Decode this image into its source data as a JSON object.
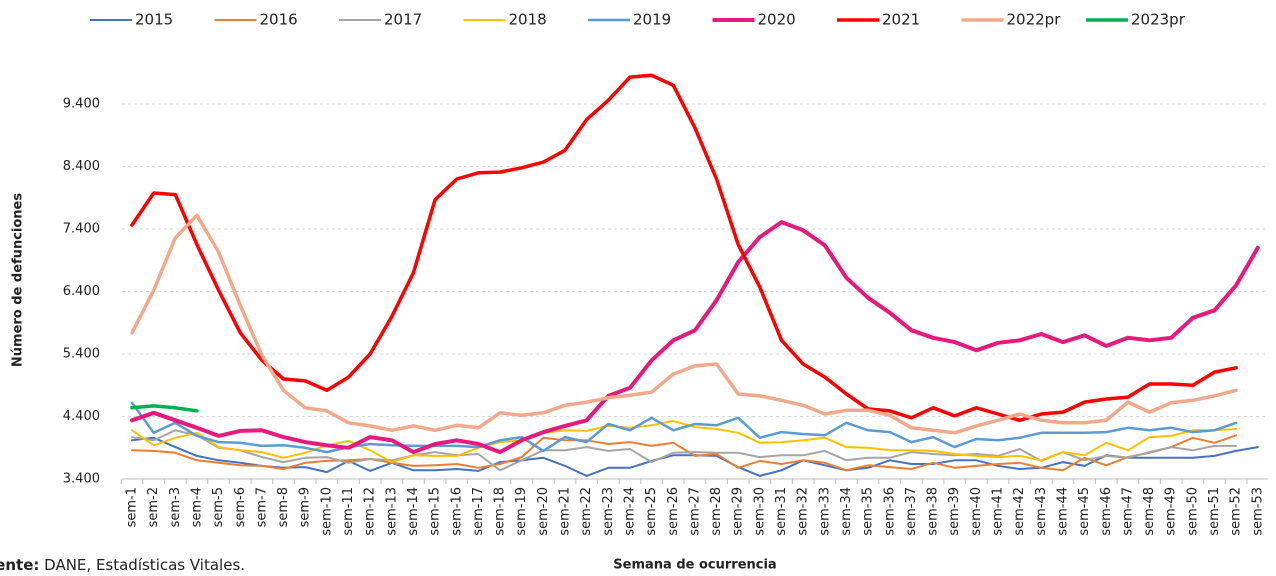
{
  "chart_data": {
    "type": "line",
    "y_label": "Número de defunciones",
    "x_label": "Semana de ocurrencia",
    "source_label": "Fuente:",
    "source": "DANE, Estadísticas Vitales.",
    "categories": [
      "sem-1",
      "sem-2",
      "sem-3",
      "sem-4",
      "sem-5",
      "sem-6",
      "sem-7",
      "sem-8",
      "sem-9",
      "sem-10",
      "sem-11",
      "sem-12",
      "sem-13",
      "sem-14",
      "sem-15",
      "sem-16",
      "sem-17",
      "sem-18",
      "sem-19",
      "sem-20",
      "sem-21",
      "sem-22",
      "sem-23",
      "sem-24",
      "sem-25",
      "sem-26",
      "sem-27",
      "sem-28",
      "sem-29",
      "sem-30",
      "sem-31",
      "sem-32",
      "sem-33",
      "sem-34",
      "sem-35",
      "sem-36",
      "sem-37",
      "sem-38",
      "sem-39",
      "sem-40",
      "sem-41",
      "sem-42",
      "sem-43",
      "sem-44",
      "sem-45",
      "sem-46",
      "sem-47",
      "sem-48",
      "sem-49",
      "sem-50",
      "sem-51",
      "sem-52",
      "sem-53"
    ],
    "ylim": [
      3400,
      10000
    ],
    "yticks": [
      {
        "value": 3400,
        "label": "3.400"
      },
      {
        "value": 4400,
        "label": "4.400"
      },
      {
        "value": 5400,
        "label": "5.400"
      },
      {
        "value": 6400,
        "label": "6.400"
      },
      {
        "value": 7400,
        "label": "7.400"
      },
      {
        "value": 8400,
        "label": "8.400"
      },
      {
        "value": 9400,
        "label": "9.400"
      }
    ],
    "grid": true,
    "legend": "top",
    "series": [
      {
        "name": "2015",
        "color": "#4472c4",
        "width": 2,
        "values": [
          4020,
          4060,
          3910,
          3770,
          3700,
          3660,
          3610,
          3580,
          3590,
          3510,
          3690,
          3530,
          3660,
          3540,
          3540,
          3560,
          3530,
          3670,
          3700,
          3740,
          3610,
          3450,
          3580,
          3580,
          3690,
          3780,
          3780,
          3770,
          3590,
          3450,
          3540,
          3700,
          3620,
          3540,
          3580,
          3700,
          3640,
          3640,
          3700,
          3700,
          3610,
          3560,
          3580,
          3670,
          3610,
          3780,
          3740,
          3740,
          3740,
          3740,
          3770,
          3850,
          3910
        ]
      },
      {
        "name": "2016",
        "color": "#ed7d31",
        "width": 2,
        "values": [
          3860,
          3850,
          3820,
          3700,
          3660,
          3620,
          3610,
          3560,
          3660,
          3690,
          3700,
          3720,
          3660,
          3610,
          3620,
          3640,
          3580,
          3640,
          3750,
          4060,
          4020,
          4020,
          3960,
          3990,
          3930,
          3980,
          3770,
          3800,
          3580,
          3690,
          3640,
          3700,
          3660,
          3540,
          3620,
          3590,
          3560,
          3660,
          3580,
          3610,
          3640,
          3660,
          3580,
          3540,
          3740,
          3620,
          3750,
          3820,
          3910,
          4060,
          3980,
          4100,
          null
        ]
      },
      {
        "name": "2017",
        "color": "#a5a5a5",
        "width": 2,
        "values": [
          4070,
          4020,
          4180,
          4100,
          3900,
          3860,
          3750,
          3670,
          3740,
          3750,
          3660,
          3720,
          3700,
          3780,
          3830,
          3780,
          3800,
          3540,
          3700,
          3860,
          3860,
          3910,
          3850,
          3880,
          3670,
          3820,
          3830,
          3820,
          3820,
          3750,
          3780,
          3780,
          3850,
          3700,
          3740,
          3740,
          3830,
          3800,
          3780,
          3800,
          3770,
          3880,
          3690,
          3830,
          3700,
          3770,
          3740,
          3830,
          3910,
          3860,
          3930,
          3930,
          null
        ]
      },
      {
        "name": "2018",
        "color": "#ffc000",
        "width": 2,
        "values": [
          4180,
          3940,
          4060,
          4140,
          3910,
          3860,
          3830,
          3740,
          3820,
          3940,
          4010,
          3860,
          3670,
          3780,
          3770,
          3770,
          3900,
          3990,
          4020,
          4140,
          4180,
          4170,
          4250,
          4220,
          4260,
          4330,
          4230,
          4200,
          4140,
          3980,
          3990,
          4020,
          4060,
          3910,
          3900,
          3860,
          3860,
          3850,
          3800,
          3770,
          3750,
          3770,
          3700,
          3830,
          3780,
          3980,
          3860,
          4070,
          4090,
          4180,
          4180,
          4200,
          null
        ]
      },
      {
        "name": "2019",
        "color": "#5b9bd5",
        "width": 2.5,
        "values": [
          4620,
          4140,
          4300,
          4090,
          3990,
          3980,
          3930,
          3940,
          3900,
          3830,
          3910,
          3960,
          3940,
          3930,
          3930,
          3930,
          3910,
          4020,
          4070,
          3850,
          4070,
          3990,
          4280,
          4180,
          4380,
          4180,
          4280,
          4260,
          4380,
          4060,
          4150,
          4120,
          4100,
          4300,
          4180,
          4150,
          3990,
          4070,
          3910,
          4040,
          4020,
          4060,
          4140,
          4140,
          4140,
          4150,
          4220,
          4180,
          4220,
          4150,
          4180,
          4300,
          null
        ]
      },
      {
        "name": "2020",
        "color": "#e8197c",
        "width": 4,
        "values": [
          4340,
          4460,
          4340,
          4220,
          4090,
          4170,
          4180,
          4070,
          3990,
          3940,
          3900,
          4070,
          4020,
          3830,
          3960,
          4020,
          3960,
          3830,
          4020,
          4150,
          4250,
          4340,
          4730,
          4860,
          5300,
          5620,
          5780,
          6260,
          6870,
          7270,
          7510,
          7380,
          7140,
          6620,
          6300,
          6060,
          5780,
          5660,
          5590,
          5460,
          5580,
          5620,
          5720,
          5590,
          5700,
          5530,
          5660,
          5620,
          5660,
          5980,
          6100,
          6500,
          7100
        ]
      },
      {
        "name": "2021",
        "color": "#ff0000",
        "width": 3.5,
        "values": [
          7464,
          7976,
          7950,
          7150,
          6420,
          5740,
          5300,
          5000,
          4970,
          4820,
          5030,
          5400,
          6000,
          6700,
          7870,
          8200,
          8300,
          8310,
          8380,
          8470,
          8660,
          9150,
          9460,
          9830,
          9860,
          9700,
          9020,
          8200,
          7150,
          6470,
          5620,
          5240,
          5030,
          4760,
          4520,
          4490,
          4380,
          4540,
          4410,
          4540,
          4440,
          4340,
          4440,
          4470,
          4630,
          4680,
          4710,
          4920,
          4920,
          4900,
          5110,
          5180,
          null
        ]
      },
      {
        "name": "2022pr",
        "color": "#f2a88a",
        "width": 3.5,
        "values": [
          5740,
          6420,
          7260,
          7620,
          7030,
          6180,
          5380,
          4820,
          4540,
          4490,
          4300,
          4250,
          4180,
          4250,
          4180,
          4260,
          4220,
          4460,
          4420,
          4460,
          4580,
          4630,
          4700,
          4740,
          4790,
          5080,
          5210,
          5240,
          4760,
          4730,
          4660,
          4580,
          4440,
          4500,
          4500,
          4420,
          4220,
          4180,
          4140,
          4250,
          4340,
          4440,
          4340,
          4300,
          4300,
          4340,
          4630,
          4470,
          4620,
          4660,
          4730,
          4820,
          null
        ]
      },
      {
        "name": "2023pr",
        "color": "#00b050",
        "width": 3.5,
        "values": [
          4540,
          4570,
          4540,
          4490,
          null,
          null,
          null,
          null,
          null,
          null,
          null,
          null,
          null,
          null,
          null,
          null,
          null,
          null,
          null,
          null,
          null,
          null,
          null,
          null,
          null,
          null,
          null,
          null,
          null,
          null,
          null,
          null,
          null,
          null,
          null,
          null,
          null,
          null,
          null,
          null,
          null,
          null,
          null,
          null,
          null,
          null,
          null,
          null,
          null,
          null,
          null,
          null,
          null
        ]
      }
    ]
  }
}
